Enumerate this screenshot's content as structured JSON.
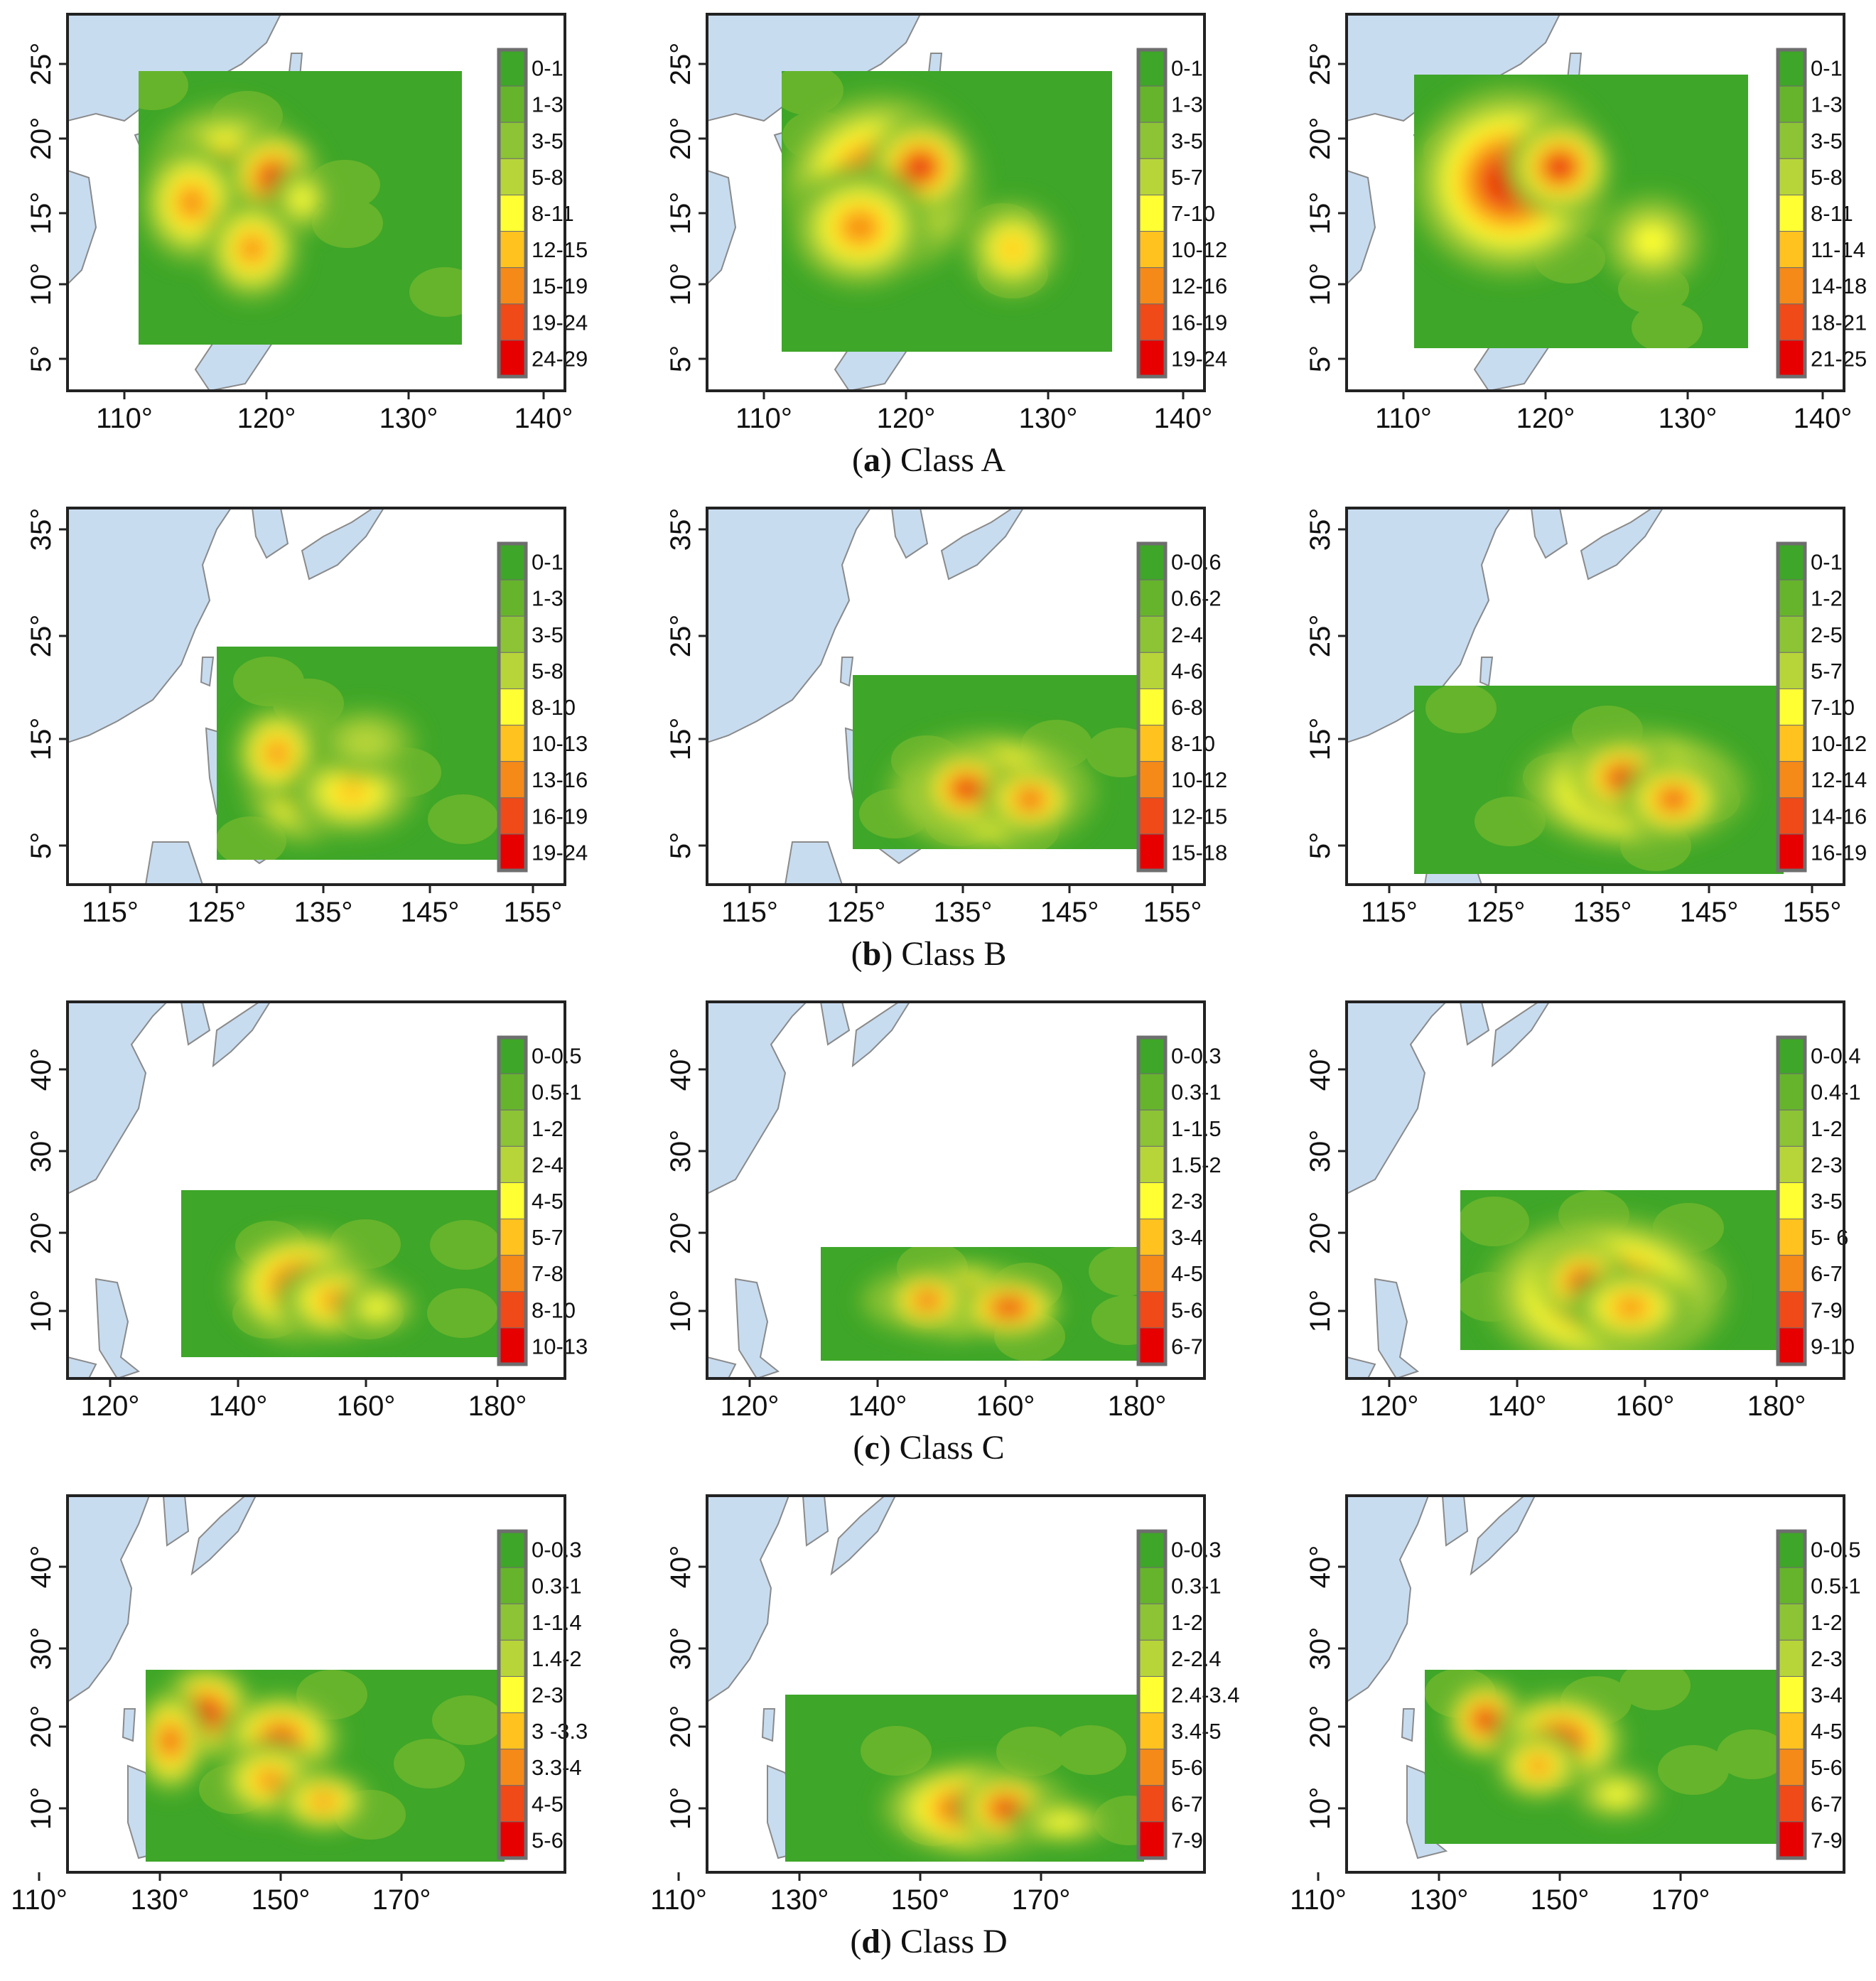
{
  "colors": {
    "land": "#c8dcf0",
    "coast": "#8a8a8a",
    "frame": "#222222",
    "legend_frame": "#6e6e6e",
    "ramp": [
      "#3ea628",
      "#66b42c",
      "#8cc435",
      "#b7d539",
      "#ffff33",
      "#ffc21f",
      "#f58a19",
      "#ef4a18",
      "#e60000"
    ]
  },
  "rows": [
    {
      "caption_letter": "a",
      "caption_paren_open": "(",
      "caption_paren_close": ")",
      "caption_text": "Class A",
      "x_ticks": [
        "110°",
        "120°",
        "130°",
        "140°"
      ],
      "y_ticks": [
        "5°",
        "10°",
        "15°",
        "20°",
        "25°"
      ],
      "panels": [
        {
          "legend": [
            "0-1",
            "1-3",
            "3-5",
            "5-8",
            "8-11",
            "12-15",
            "15-19",
            "19-24",
            "24-29"
          ]
        },
        {
          "legend": [
            "0-1",
            "1-3",
            "3-5",
            "5-7",
            "7-10",
            "10-12",
            "12-16",
            "16-19",
            "19-24"
          ]
        },
        {
          "legend": [
            "0-1",
            "1-3",
            "3-5",
            "5-8",
            "8-11",
            "11-14",
            "14-18",
            "18-21",
            "21-25"
          ]
        }
      ]
    },
    {
      "caption_letter": "b",
      "caption_paren_open": "(",
      "caption_paren_close": ")",
      "caption_text": "Class B",
      "x_ticks": [
        "115°",
        "125°",
        "135°",
        "145°",
        "155°"
      ],
      "y_ticks": [
        "5°",
        "15°",
        "25°",
        "35°"
      ],
      "panels": [
        {
          "legend": [
            "0-1",
            "1-3",
            "3-5",
            "5-8",
            "8-10",
            "10-13",
            "13-16",
            "16-19",
            "19-24"
          ]
        },
        {
          "legend": [
            "0-0.6",
            "0.6-2",
            "2-4",
            "4-6",
            "6-8",
            "8-10",
            "10-12",
            "12-15",
            "15-18"
          ]
        },
        {
          "legend": [
            "0-1",
            "1-2",
            "2-5",
            "5-7",
            "7-10",
            "10-12",
            "12-14",
            "14-16",
            "16-19"
          ]
        }
      ]
    },
    {
      "caption_letter": "c",
      "caption_paren_open": "(",
      "caption_paren_close": ")",
      "caption_text": "Class C",
      "x_ticks": [
        "120°",
        "140°",
        "160°",
        "180°"
      ],
      "y_ticks": [
        "10°",
        "20°",
        "30°",
        "40°"
      ],
      "panels": [
        {
          "legend": [
            "0-0.5",
            "0.5-1",
            "1-2",
            "2-4",
            "4-5",
            "5-7",
            "7-8",
            "8-10",
            "10-13"
          ]
        },
        {
          "legend": [
            "0-0.3",
            "0.3-1",
            "1-1.5",
            "1.5-2",
            "2-3",
            "3-4",
            "4-5",
            "5-6",
            "6-7"
          ]
        },
        {
          "legend": [
            "0-0.4",
            "0.4-1",
            "1-2",
            "2-3",
            "3-5",
            "5- 6",
            "6-7",
            "7-9",
            "9-10"
          ]
        }
      ]
    },
    {
      "caption_letter": "d",
      "caption_paren_open": "(",
      "caption_paren_close": ")",
      "caption_text": "Class D",
      "x_ticks": [
        "110°",
        "130°",
        "150°",
        "170°"
      ],
      "y_ticks": [
        "10°",
        "20°",
        "30°",
        "40°"
      ],
      "panels": [
        {
          "legend": [
            "0-0.3",
            "0.3-1",
            "1-1.4",
            "1.4-2",
            "2-3",
            "3 -3.3",
            "3.3-4",
            "4-5",
            "5-6"
          ]
        },
        {
          "legend": [
            "0-0.3",
            "0.3-1",
            "1-2",
            "2-2.4",
            "2.4-3.4",
            "3.4-5",
            "5-6",
            "6-7",
            "7-9"
          ]
        },
        {
          "legend": [
            "0-0.5",
            "0.5-1",
            "1-2",
            "2-3",
            "3-4",
            "4-5",
            "5-6",
            "6-7",
            "7-9"
          ]
        }
      ]
    }
  ]
}
